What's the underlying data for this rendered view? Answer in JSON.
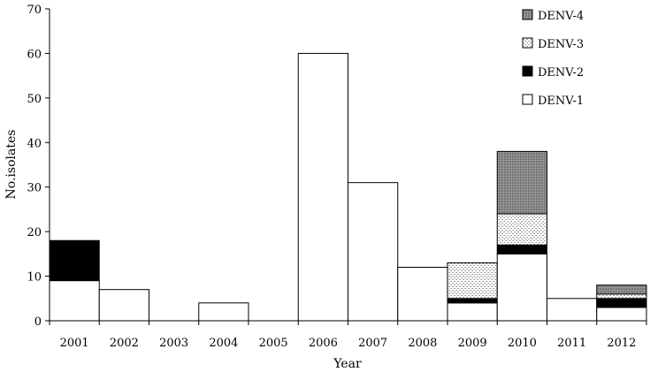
{
  "chart_data": {
    "type": "bar",
    "stacked": true,
    "xlabel": "Year",
    "ylabel": "No.isolates",
    "ylim": [
      0,
      70
    ],
    "yticks": [
      0,
      10,
      20,
      30,
      40,
      50,
      60,
      70
    ],
    "categories": [
      "2001",
      "2002",
      "2003",
      "2004",
      "2005",
      "2006",
      "2007",
      "2008",
      "2009",
      "2010",
      "2011",
      "2012"
    ],
    "series": [
      {
        "name": "DENV-1",
        "color": "#ffffff",
        "pattern": "solid-white",
        "values": [
          9,
          7,
          0,
          4,
          0,
          60,
          31,
          12,
          4,
          15,
          5,
          3
        ]
      },
      {
        "name": "DENV-2",
        "color": "#000000",
        "pattern": "solid-black",
        "values": [
          9,
          0,
          0,
          0,
          0,
          0,
          0,
          0,
          1,
          2,
          0,
          2
        ]
      },
      {
        "name": "DENV-3",
        "color": "#c8c8c8",
        "pattern": "light-crosshatch",
        "values": [
          0,
          0,
          0,
          0,
          0,
          0,
          0,
          0,
          8,
          7,
          0,
          1
        ]
      },
      {
        "name": "DENV-4",
        "color": "#808080",
        "pattern": "dark-stipple",
        "values": [
          0,
          0,
          0,
          0,
          0,
          0,
          0,
          0,
          0,
          14,
          0,
          2
        ]
      }
    ],
    "legend_order": [
      "DENV-4",
      "DENV-3",
      "DENV-2",
      "DENV-1"
    ],
    "legend_position": "top-right",
    "grid": false
  }
}
